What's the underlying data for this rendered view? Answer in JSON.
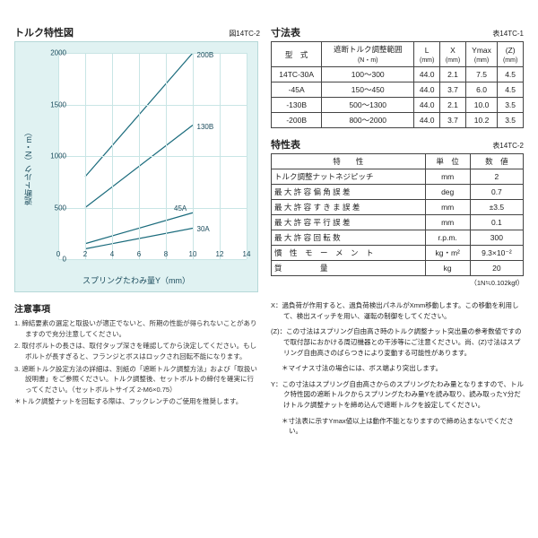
{
  "chart": {
    "title": "トルク特性図",
    "fig_label": "図14TC-2",
    "y_label": "遮断トルク（N・m）",
    "x_label": "スプリングたわみ量Y（mm）",
    "xlim": [
      0,
      14
    ],
    "ylim": [
      0,
      2000
    ],
    "x_ticks": [
      0,
      2,
      4,
      6,
      8,
      10,
      12,
      14
    ],
    "y_ticks": [
      0,
      500,
      1000,
      1500,
      2000
    ],
    "grid_color": "#c9e5e5",
    "background_color": "#e0f2f2",
    "line_color": "#1a6b7c",
    "series": [
      {
        "label": "200B",
        "x1": 2,
        "y1": 800,
        "x2": 10,
        "y2": 2000,
        "label_x": 10.3,
        "label_y": 1980
      },
      {
        "label": "130B",
        "x1": 2,
        "y1": 500,
        "x2": 10,
        "y2": 1300,
        "label_x": 10.3,
        "label_y": 1290
      },
      {
        "label": "45A",
        "x1": 2,
        "y1": 150,
        "x2": 10,
        "y2": 450,
        "label_x": 8.6,
        "label_y": 500
      },
      {
        "label": "30A",
        "x1": 2,
        "y1": 100,
        "x2": 10,
        "y2": 300,
        "label_x": 10.3,
        "label_y": 300
      }
    ]
  },
  "notes": {
    "title": "注意事項",
    "items": [
      "1. 締結要素の選定と取扱いが適正でないと、所期の性能が得られないことがありますので充分注意してください。",
      "2. 取付ボルトの長さは、取付タップ深さを確認してから決定してください。もしボルトが長すぎると、フランジとボスはロックされ回転不能になります。",
      "3. 遮断トルク設定方法の詳細は、別紙の「遮断トルク調整方法」および「取扱い説明書」をご参照ください。トルク調整後、セットボルトの締付を確実に行ってください。（セットボルトサイズ 2-M6×0.75）"
    ],
    "star": "＊トルク調整ナットを回転する際は、フックレンチのご使用を推奨します。"
  },
  "dim_table": {
    "title": "寸法表",
    "label": "表14TC-1",
    "headers": [
      "型　式",
      "遮断トルク調整範囲",
      "L",
      "X",
      "Ymax",
      "(Z)"
    ],
    "sub_headers": [
      "",
      "(N・m)",
      "(mm)",
      "(mm)",
      "(mm)",
      "(mm)"
    ],
    "rows": [
      [
        "14TC-30A",
        "100～300",
        "44.0",
        "2.1",
        "7.5",
        "4.5"
      ],
      [
        "-45A",
        "150～450",
        "44.0",
        "3.7",
        "6.0",
        "4.5"
      ],
      [
        "-130B",
        "500～1300",
        "44.0",
        "2.1",
        "10.0",
        "3.5"
      ],
      [
        "-200B",
        "800～2000",
        "44.0",
        "3.7",
        "10.2",
        "3.5"
      ]
    ]
  },
  "spec_table": {
    "title": "特性表",
    "label": "表14TC-2",
    "headers": [
      "特　　性",
      "単　位",
      "数　値"
    ],
    "rows": [
      [
        "トルク調整ナットネジピッチ",
        "mm",
        "2"
      ],
      [
        "最 大 許 容 偏 角 誤 差",
        "deg",
        "0.7"
      ],
      [
        "最 大 許 容 す き ま 誤 差",
        "mm",
        "±3.5"
      ],
      [
        "最 大 許 容 平 行 誤 差",
        "mm",
        "0.1"
      ],
      [
        "最 大 許 容 回 転 数",
        "r.p.m.",
        "300"
      ],
      [
        "慣　性　モ　ー　メ　ン　ト",
        "kg・m²",
        "9.3×10⁻²"
      ],
      [
        "質　　　　　量",
        "kg",
        "20"
      ]
    ],
    "unit_note": "（1N≒0.102kgf）"
  },
  "right_notes": {
    "items": [
      "X：過負荷が作用すると、過負荷検出パネルがXmm移動します。この移動を利用して、検出スイッチを用い、運転の制御をしてください。",
      "(Z)：この寸法はスプリング自由高さ時のトルク調整ナット突出量の参考数値ですので取付部におかける周辺機器との干渉等にご注意ください。尚、(Z)寸法はスプリング自由高さのばらつきにより変動する可能性があります。",
      "＊マイナス寸法の場合には、ボス端より突出します。",
      "Y：この寸法はスプリング自由高さからのスプリングたわみ量となりますので、トルク特性図の遮断トルクからスプリングたわみ量Yを読み取り、読み取ったY分だけトルク調整ナットを締め込んで遮断トルクを設定してください。",
      "＊寸法表に示すYmax値以上は動作不能となりますので締め込まないでください。"
    ]
  }
}
